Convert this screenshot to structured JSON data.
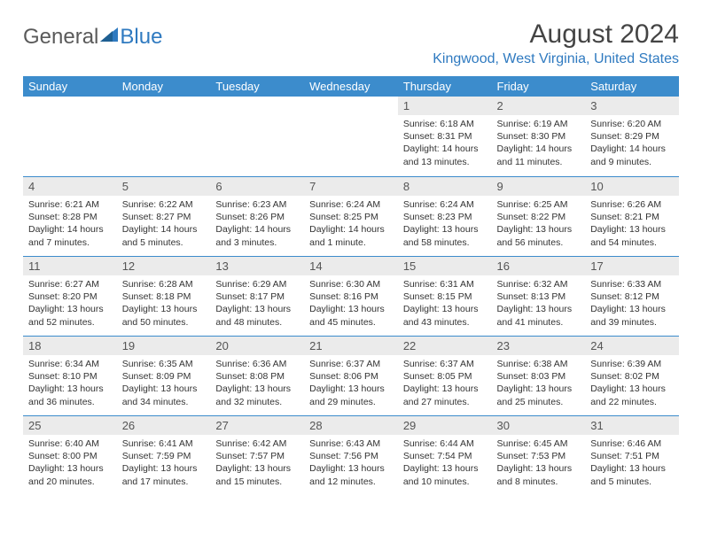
{
  "brand": {
    "part1": "General",
    "part2": "Blue"
  },
  "title": "August 2024",
  "location": "Kingwood, West Virginia, United States",
  "colors": {
    "header_bg": "#3c8ccc",
    "header_text": "#ffffff",
    "daynum_bg": "#ebebeb",
    "daynum_text": "#555555",
    "rule": "#3c8ccc",
    "brand_gray": "#5a5a5a",
    "brand_blue": "#2f7ac0",
    "body_text": "#333333"
  },
  "day_headers": [
    "Sunday",
    "Monday",
    "Tuesday",
    "Wednesday",
    "Thursday",
    "Friday",
    "Saturday"
  ],
  "weeks": [
    [
      null,
      null,
      null,
      null,
      {
        "n": "1",
        "sr": "Sunrise: 6:18 AM",
        "ss": "Sunset: 8:31 PM",
        "dl1": "Daylight: 14 hours",
        "dl2": "and 13 minutes."
      },
      {
        "n": "2",
        "sr": "Sunrise: 6:19 AM",
        "ss": "Sunset: 8:30 PM",
        "dl1": "Daylight: 14 hours",
        "dl2": "and 11 minutes."
      },
      {
        "n": "3",
        "sr": "Sunrise: 6:20 AM",
        "ss": "Sunset: 8:29 PM",
        "dl1": "Daylight: 14 hours",
        "dl2": "and 9 minutes."
      }
    ],
    [
      {
        "n": "4",
        "sr": "Sunrise: 6:21 AM",
        "ss": "Sunset: 8:28 PM",
        "dl1": "Daylight: 14 hours",
        "dl2": "and 7 minutes."
      },
      {
        "n": "5",
        "sr": "Sunrise: 6:22 AM",
        "ss": "Sunset: 8:27 PM",
        "dl1": "Daylight: 14 hours",
        "dl2": "and 5 minutes."
      },
      {
        "n": "6",
        "sr": "Sunrise: 6:23 AM",
        "ss": "Sunset: 8:26 PM",
        "dl1": "Daylight: 14 hours",
        "dl2": "and 3 minutes."
      },
      {
        "n": "7",
        "sr": "Sunrise: 6:24 AM",
        "ss": "Sunset: 8:25 PM",
        "dl1": "Daylight: 14 hours",
        "dl2": "and 1 minute."
      },
      {
        "n": "8",
        "sr": "Sunrise: 6:24 AM",
        "ss": "Sunset: 8:23 PM",
        "dl1": "Daylight: 13 hours",
        "dl2": "and 58 minutes."
      },
      {
        "n": "9",
        "sr": "Sunrise: 6:25 AM",
        "ss": "Sunset: 8:22 PM",
        "dl1": "Daylight: 13 hours",
        "dl2": "and 56 minutes."
      },
      {
        "n": "10",
        "sr": "Sunrise: 6:26 AM",
        "ss": "Sunset: 8:21 PM",
        "dl1": "Daylight: 13 hours",
        "dl2": "and 54 minutes."
      }
    ],
    [
      {
        "n": "11",
        "sr": "Sunrise: 6:27 AM",
        "ss": "Sunset: 8:20 PM",
        "dl1": "Daylight: 13 hours",
        "dl2": "and 52 minutes."
      },
      {
        "n": "12",
        "sr": "Sunrise: 6:28 AM",
        "ss": "Sunset: 8:18 PM",
        "dl1": "Daylight: 13 hours",
        "dl2": "and 50 minutes."
      },
      {
        "n": "13",
        "sr": "Sunrise: 6:29 AM",
        "ss": "Sunset: 8:17 PM",
        "dl1": "Daylight: 13 hours",
        "dl2": "and 48 minutes."
      },
      {
        "n": "14",
        "sr": "Sunrise: 6:30 AM",
        "ss": "Sunset: 8:16 PM",
        "dl1": "Daylight: 13 hours",
        "dl2": "and 45 minutes."
      },
      {
        "n": "15",
        "sr": "Sunrise: 6:31 AM",
        "ss": "Sunset: 8:15 PM",
        "dl1": "Daylight: 13 hours",
        "dl2": "and 43 minutes."
      },
      {
        "n": "16",
        "sr": "Sunrise: 6:32 AM",
        "ss": "Sunset: 8:13 PM",
        "dl1": "Daylight: 13 hours",
        "dl2": "and 41 minutes."
      },
      {
        "n": "17",
        "sr": "Sunrise: 6:33 AM",
        "ss": "Sunset: 8:12 PM",
        "dl1": "Daylight: 13 hours",
        "dl2": "and 39 minutes."
      }
    ],
    [
      {
        "n": "18",
        "sr": "Sunrise: 6:34 AM",
        "ss": "Sunset: 8:10 PM",
        "dl1": "Daylight: 13 hours",
        "dl2": "and 36 minutes."
      },
      {
        "n": "19",
        "sr": "Sunrise: 6:35 AM",
        "ss": "Sunset: 8:09 PM",
        "dl1": "Daylight: 13 hours",
        "dl2": "and 34 minutes."
      },
      {
        "n": "20",
        "sr": "Sunrise: 6:36 AM",
        "ss": "Sunset: 8:08 PM",
        "dl1": "Daylight: 13 hours",
        "dl2": "and 32 minutes."
      },
      {
        "n": "21",
        "sr": "Sunrise: 6:37 AM",
        "ss": "Sunset: 8:06 PM",
        "dl1": "Daylight: 13 hours",
        "dl2": "and 29 minutes."
      },
      {
        "n": "22",
        "sr": "Sunrise: 6:37 AM",
        "ss": "Sunset: 8:05 PM",
        "dl1": "Daylight: 13 hours",
        "dl2": "and 27 minutes."
      },
      {
        "n": "23",
        "sr": "Sunrise: 6:38 AM",
        "ss": "Sunset: 8:03 PM",
        "dl1": "Daylight: 13 hours",
        "dl2": "and 25 minutes."
      },
      {
        "n": "24",
        "sr": "Sunrise: 6:39 AM",
        "ss": "Sunset: 8:02 PM",
        "dl1": "Daylight: 13 hours",
        "dl2": "and 22 minutes."
      }
    ],
    [
      {
        "n": "25",
        "sr": "Sunrise: 6:40 AM",
        "ss": "Sunset: 8:00 PM",
        "dl1": "Daylight: 13 hours",
        "dl2": "and 20 minutes."
      },
      {
        "n": "26",
        "sr": "Sunrise: 6:41 AM",
        "ss": "Sunset: 7:59 PM",
        "dl1": "Daylight: 13 hours",
        "dl2": "and 17 minutes."
      },
      {
        "n": "27",
        "sr": "Sunrise: 6:42 AM",
        "ss": "Sunset: 7:57 PM",
        "dl1": "Daylight: 13 hours",
        "dl2": "and 15 minutes."
      },
      {
        "n": "28",
        "sr": "Sunrise: 6:43 AM",
        "ss": "Sunset: 7:56 PM",
        "dl1": "Daylight: 13 hours",
        "dl2": "and 12 minutes."
      },
      {
        "n": "29",
        "sr": "Sunrise: 6:44 AM",
        "ss": "Sunset: 7:54 PM",
        "dl1": "Daylight: 13 hours",
        "dl2": "and 10 minutes."
      },
      {
        "n": "30",
        "sr": "Sunrise: 6:45 AM",
        "ss": "Sunset: 7:53 PM",
        "dl1": "Daylight: 13 hours",
        "dl2": "and 8 minutes."
      },
      {
        "n": "31",
        "sr": "Sunrise: 6:46 AM",
        "ss": "Sunset: 7:51 PM",
        "dl1": "Daylight: 13 hours",
        "dl2": "and 5 minutes."
      }
    ]
  ]
}
